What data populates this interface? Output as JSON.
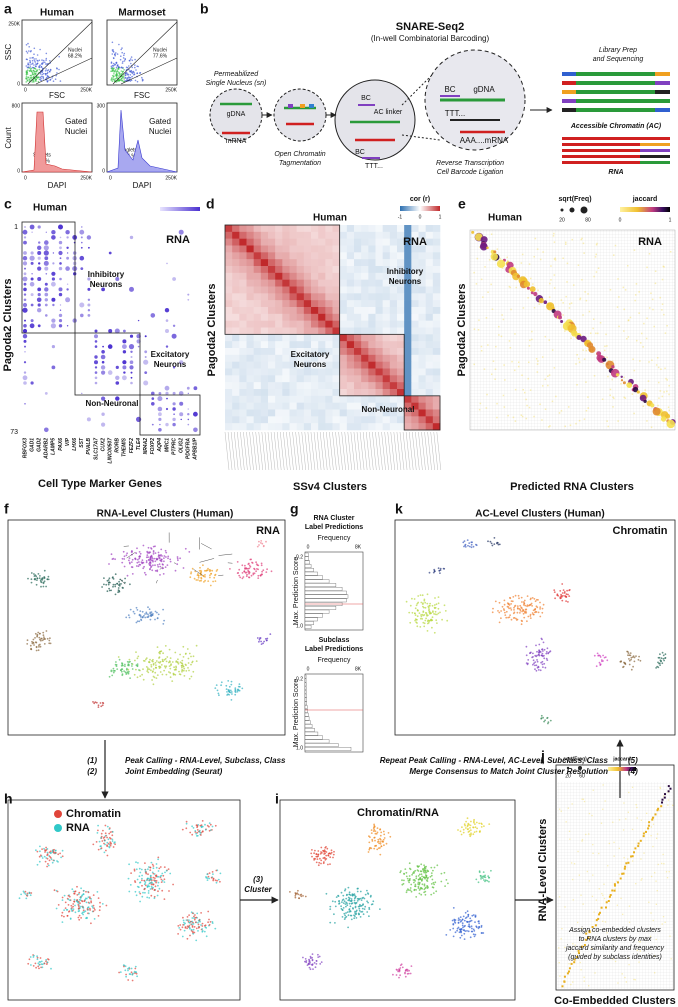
{
  "panel_letters": [
    "a",
    "b",
    "c",
    "d",
    "e",
    "f",
    "g",
    "h",
    "i",
    "j",
    "k"
  ],
  "a": {
    "titles": [
      "Human",
      "Marmoset"
    ],
    "ssc": "SSC",
    "fsc": [
      "FSC",
      "FSC"
    ],
    "count": "Count",
    "dapi": [
      "DAPI",
      "DAPI"
    ],
    "tick_250k": [
      "250K",
      "250K",
      "250K",
      "250K",
      "250K"
    ],
    "tick_0": [
      "0",
      "0",
      "0",
      "0",
      "0",
      "0"
    ],
    "count_max": [
      "800",
      "300"
    ],
    "nuclei": [
      "Nuclei",
      "68.2%",
      "Nuclei",
      "77.6%"
    ],
    "gated": [
      "Gated",
      "Nuclei",
      "Gated",
      "Nuclei"
    ],
    "singlets": [
      "Singlets",
      "49.6 %",
      "Singlets",
      "45.4 %"
    ]
  },
  "b": {
    "title": "SNARE-Seq2",
    "subtitle": "(In-well Combinatorial Barcoding)",
    "nucleus": [
      "Permeabilized",
      "Single Nucleus (sn)"
    ],
    "gdna": [
      "gDNA",
      "gDNA"
    ],
    "mrna": "mRNA",
    "tagmentation": [
      "Open Chromatin",
      "Tagmentation"
    ],
    "bc": [
      "BC",
      "BC",
      "BC"
    ],
    "ac_linker": "AC linker",
    "ttt": [
      "TTT...",
      "TTT..."
    ],
    "aaa": "AAA....mRNA",
    "rt": [
      "Reverse Transcription",
      "Cell Barcode Ligation"
    ],
    "library": [
      "Library Prep",
      "and Sequencing"
    ],
    "ac": "Accessible Chromatin (AC)",
    "rna": "RNA"
  },
  "c": {
    "title": "Human",
    "modality": "RNA",
    "y_label": "Pagoda2 Clusters",
    "first": "1",
    "last": "73",
    "inhibitory": [
      "Inhibitory",
      "Neurons"
    ],
    "excitatory": [
      "Excitatory",
      "Neurons"
    ],
    "non_neuronal": "Non-Neuronal",
    "genes": [
      "RBFOX3",
      "GAD1",
      "GAD2",
      "ADARB2",
      "LAMP5",
      "PAX6",
      "VIP",
      "LHX6",
      "SST",
      "PVALB",
      "SLC17A7",
      "CUX2",
      "LINC00507",
      "RORB",
      "THEMIS",
      "FEZF2",
      "TLE4",
      "NR4A2",
      "FOXP2",
      "AQP4",
      "MRC1",
      "PTPRC",
      "OLIG2",
      "PDGFRA",
      "APBB1IP"
    ],
    "x_label": "Cell Type Marker Genes"
  },
  "d": {
    "title": "Human",
    "legend_title": "cor (r)",
    "legend_ticks": [
      "-1",
      "0",
      "1"
    ],
    "modality": "RNA",
    "inhibitory": [
      "Inhibitory",
      "Neurons"
    ],
    "excitatory": [
      "Excitatory",
      "Neurons"
    ],
    "non_neuronal": "Non-Neuronal",
    "y_label": "Pagoda2 Clusters",
    "x_label": "SSv4 Clusters"
  },
  "e": {
    "title": "Human",
    "size_title": "sqrt(Freq)",
    "size_ticks": [
      "20",
      "80"
    ],
    "color_title": "jaccard",
    "color_ticks": [
      "0",
      "1"
    ],
    "modality": "RNA",
    "y_label": "Pagoda2 Clusters",
    "x_label": "Predicted RNA Clusters"
  },
  "f": {
    "title": "RNA-Level Clusters (Human)",
    "modality": "RNA"
  },
  "g": {
    "top": {
      "title": [
        "RNA Cluster",
        "Label Predictions"
      ],
      "x_label": "Frequency",
      "x_ticks": [
        "0",
        "8K"
      ],
      "y_label": "Max. Prediction Score",
      "y_ticks": [
        "0.2",
        "1.0"
      ]
    },
    "bottom": {
      "title": [
        "Subclass",
        "Label Predictions"
      ],
      "x_label": "Frequency",
      "x_ticks": [
        "0",
        "8K"
      ],
      "y_label": "Max. Prediction Score",
      "y_ticks": [
        "0.2",
        "1.0"
      ]
    }
  },
  "k": {
    "title": "AC-Level Clusters (Human)",
    "modality": "Chromatin"
  },
  "steps": {
    "left_numbers": [
      "(1)",
      "(2)"
    ],
    "left_text": [
      "Peak Calling - RNA-Level, Subclass, Class",
      "Joint Embedding (Seurat)"
    ],
    "right_text": [
      "Repeat Peak Calling - RNA-Level, AC-Level, Subclass, Class",
      "Merge Consensus to Match Joint Cluster Resolution"
    ],
    "right_numbers": [
      "(5)",
      "(4)"
    ],
    "cluster": [
      "(3)",
      "Cluster"
    ]
  },
  "h": {
    "legend": [
      "Chromatin",
      "RNA"
    ]
  },
  "i": {
    "title": "Chromatin/RNA"
  },
  "j": {
    "size_title": "sqrt(Freq)",
    "size_ticks": [
      "20",
      "60"
    ],
    "color_title": "jaccard",
    "y_label": "RNA-Level Clusters",
    "x_label": "Co-Embedded Clusters",
    "note": [
      "Assign co-embedded clusters",
      "to RNA clusters by max",
      "jaccard similarity and frequency",
      "(guided by subclass identities)"
    ]
  }
}
